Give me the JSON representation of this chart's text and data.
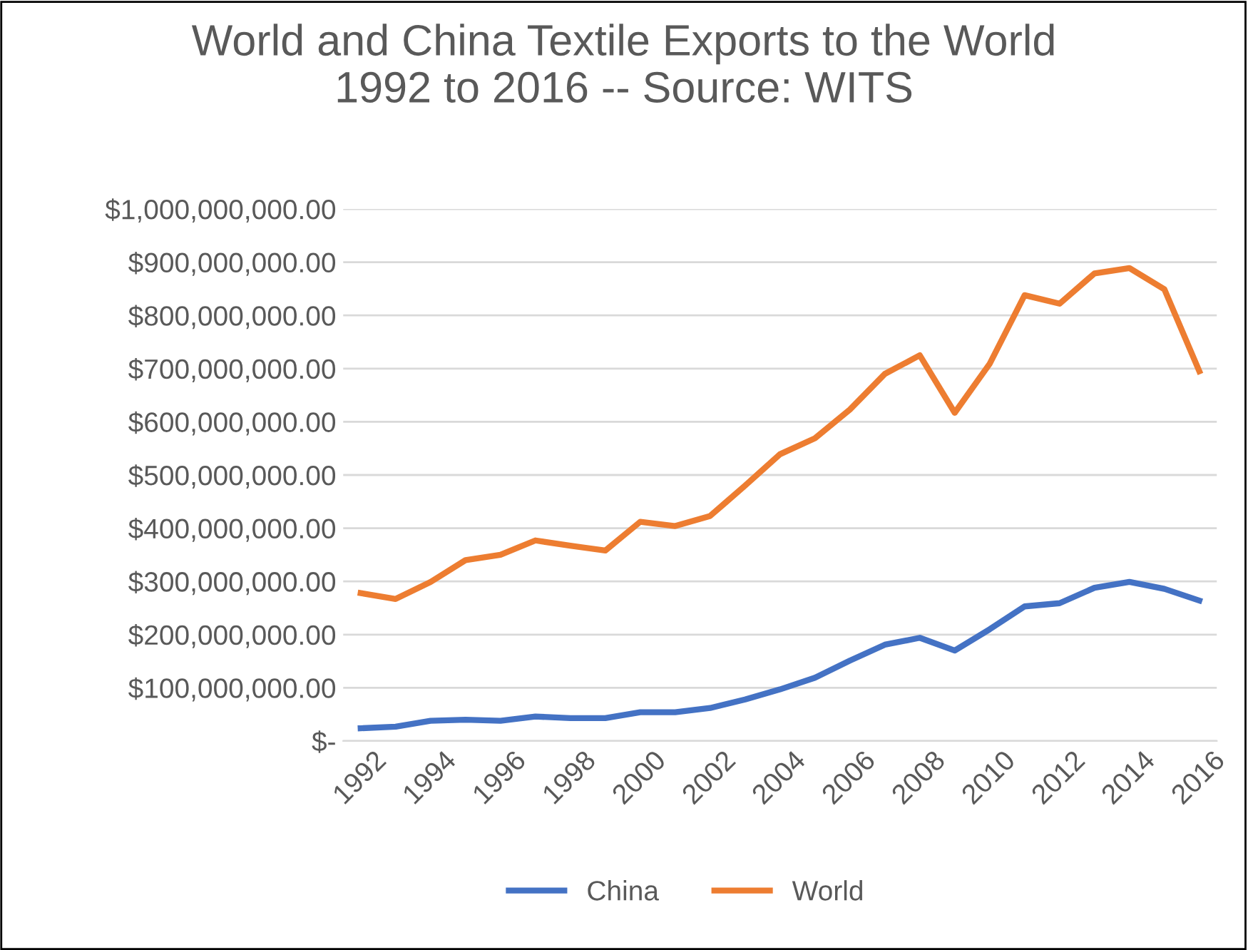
{
  "chart_data": {
    "type": "line",
    "title": "World and China Textile Exports to the World\n1992 to 2016 -- Source: WITS",
    "categories": [
      "1992",
      null,
      "1994",
      null,
      "1996",
      null,
      "1998",
      null,
      "2000",
      null,
      "2002",
      null,
      "2004",
      null,
      "2006",
      null,
      "2008",
      null,
      "2010",
      null,
      "2012",
      null,
      "2014",
      null,
      "2016"
    ],
    "series": [
      {
        "name": "China",
        "color": "#4472c4",
        "values": [
          24000000,
          27000000,
          38000000,
          40000000,
          38000000,
          46000000,
          43000000,
          43000000,
          54000000,
          54000000,
          62000000,
          78000000,
          97000000,
          119000000,
          151000000,
          181000000,
          194000000,
          170000000,
          210000000,
          253000000,
          259000000,
          288000000,
          299000000,
          286000000,
          264000000
        ]
      },
      {
        "name": "World",
        "color": "#ed7d31",
        "values": [
          278000000,
          267000000,
          299000000,
          340000000,
          350000000,
          377000000,
          367000000,
          358000000,
          412000000,
          404000000,
          423000000,
          480000000,
          539000000,
          569000000,
          623000000,
          690000000,
          725000000,
          617000000,
          709000000,
          838000000,
          822000000,
          879000000,
          889000000,
          849000000,
          695000000
        ]
      }
    ],
    "ylim": [
      0,
      1000000000
    ],
    "yticks": [
      {
        "value": 0,
        "label": "$-"
      },
      {
        "value": 100000000,
        "label": "$100,000,000.00"
      },
      {
        "value": 200000000,
        "label": "$200,000,000.00"
      },
      {
        "value": 300000000,
        "label": "$300,000,000.00"
      },
      {
        "value": 400000000,
        "label": "$400,000,000.00"
      },
      {
        "value": 500000000,
        "label": "$500,000,000.00"
      },
      {
        "value": 600000000,
        "label": "$600,000,000.00"
      },
      {
        "value": 700000000,
        "label": "$700,000,000.00"
      },
      {
        "value": 800000000,
        "label": "$800,000,000.00"
      },
      {
        "value": 900000000,
        "label": "$900,000,000.00"
      },
      {
        "value": 1000000000,
        "label": "$1,000,000,000.00"
      }
    ],
    "grid": "y",
    "legend": "bottom",
    "marker": "none",
    "line_style": "solid"
  }
}
